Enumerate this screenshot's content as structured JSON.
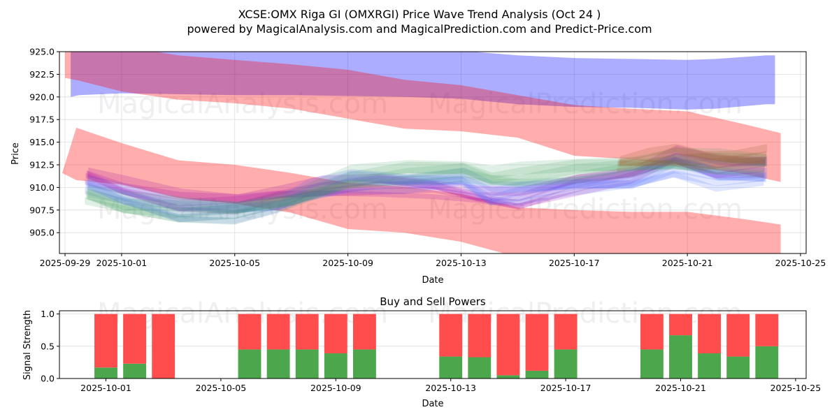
{
  "title_line1": "XCSE:OMX Riga GI (OMXRGI) Price Wave Trend Analysis (Oct 24 )",
  "title_line2": "powered by MagicalAnalysis.com and MagicalPrediction.com and Predict-Price.com",
  "watermarks": [
    "MagicalAnalysis.com",
    "MagicalPrediction.com"
  ],
  "chart_data": [
    {
      "type": "area",
      "title": "",
      "xlabel": "Date",
      "ylabel": "Price",
      "ylim": [
        902.7,
        925.0
      ],
      "xlim": [
        "2025-09-28.8",
        "2025-10-25.4"
      ],
      "grid": true,
      "x_ticks": [
        "2025-09-29",
        "2025-10-01",
        "2025-10-05",
        "2025-10-09",
        "2025-10-13",
        "2025-10-17",
        "2025-10-21",
        "2025-10-25"
      ],
      "y_ticks": [
        "905.0",
        "907.5",
        "910.0",
        "912.5",
        "915.0",
        "917.5",
        "920.0",
        "922.5",
        "925.0"
      ],
      "bands": [
        {
          "name": "Upper blue wave band",
          "color": "#0000ff",
          "opacity": 0.32,
          "x": [
            0.2,
            0.5,
            2,
            4,
            6,
            8,
            10,
            12,
            14,
            16,
            18,
            20,
            22,
            23,
            24.8,
            25.1
          ],
          "upper": [
            926.8,
            926.5,
            926.2,
            925.8,
            925.6,
            925.4,
            925.3,
            925.3,
            925.1,
            924.6,
            924.3,
            924.2,
            924.1,
            924.2,
            924.6,
            924.6
          ],
          "lower": [
            920.0,
            920.2,
            920.4,
            920.3,
            920.2,
            920.2,
            920.1,
            920.0,
            919.8,
            919.2,
            918.9,
            918.8,
            918.6,
            918.7,
            919.2,
            919.2
          ]
        },
        {
          "name": "Upper red wave band",
          "color": "#ff0000",
          "opacity": 0.32,
          "x": [
            0,
            0.5,
            2,
            4,
            6,
            8,
            10,
            12,
            14,
            16,
            18,
            20,
            22,
            24,
            25.3
          ],
          "upper": [
            925.5,
            926.5,
            925.6,
            924.6,
            924.1,
            923.6,
            923.0,
            921.9,
            921.3,
            920.2,
            919.1,
            918.7,
            918.4,
            917.0,
            916.0
          ],
          "lower": [
            922.1,
            921.8,
            920.6,
            919.7,
            919.3,
            918.7,
            917.6,
            916.5,
            916.2,
            915.5,
            913.5,
            913.1,
            912.4,
            911.5,
            910.6
          ]
        },
        {
          "name": "Lower red wave band",
          "color": "#ff0000",
          "opacity": 0.32,
          "x": [
            -0.1,
            0.4,
            2,
            4,
            6,
            8,
            10,
            12,
            14,
            16,
            18,
            20,
            22,
            24,
            25.3
          ],
          "upper": [
            911.6,
            916.6,
            914.9,
            913.0,
            912.5,
            911.6,
            910.5,
            910.1,
            909.3,
            907.8,
            907.5,
            907.3,
            907.3,
            906.5,
            905.9
          ],
          "lower": [
            911.6,
            910.8,
            910.3,
            908.8,
            908.2,
            907.2,
            905.4,
            905.0,
            904.0,
            902.3,
            901.5,
            901.3,
            901.3,
            901.3,
            901.2
          ]
        }
      ],
      "wave_bundles": [
        {
          "name": "Purple short-term waves",
          "color": "#9900aa",
          "opacity": 0.18,
          "x": [
            0.7,
            2,
            4,
            6,
            7.5,
            9,
            11,
            13,
            14.5,
            16,
            18,
            20,
            21.5,
            23,
            24.7
          ],
          "center": [
            911.3,
            909.9,
            908.4,
            908.3,
            909.2,
            909.8,
            910.2,
            909.9,
            909.0,
            908.5,
            910.3,
            911.4,
            913.3,
            912.0,
            912.4
          ],
          "spread": 1.0
        },
        {
          "name": "Blue short-term waves",
          "color": "#4466ff",
          "opacity": 0.16,
          "x": [
            0.7,
            2,
            4,
            6,
            7.5,
            8.5,
            10,
            12,
            14,
            15,
            16,
            18,
            20,
            21.5,
            23,
            24.7
          ],
          "center": [
            910.3,
            908.9,
            907.3,
            907.3,
            908.0,
            909.3,
            910.6,
            910.5,
            910.9,
            909.0,
            909.4,
            910.2,
            910.6,
            912.2,
            910.9,
            911.1
          ],
          "spread": 1.2
        },
        {
          "name": "Green short-term waves",
          "color": "#339955",
          "opacity": 0.15,
          "x": [
            0.7,
            2,
            4,
            6,
            8,
            10,
            12,
            14,
            15,
            16,
            18,
            20,
            21.5,
            23,
            24.7
          ],
          "center": [
            909.2,
            908.0,
            907.3,
            907.3,
            908.6,
            910.8,
            911.5,
            911.8,
            911.0,
            911.1,
            911.8,
            912.3,
            912.8,
            912.6,
            912.5
          ],
          "spread": 1.4
        },
        {
          "name": "Brown short-term waves",
          "color": "#996633",
          "opacity": 0.2,
          "x": [
            19.5,
            20.5,
            21.5,
            22.5,
            23.5,
            24.7
          ],
          "center": [
            912.6,
            913.0,
            913.4,
            913.1,
            913.1,
            913.3
          ],
          "spread": 0.9
        }
      ]
    },
    {
      "type": "bar",
      "title": "Buy and Sell Powers",
      "xlabel": "Date",
      "ylabel": "Signal Strength",
      "ylim": [
        0.0,
        1.05
      ],
      "grid": true,
      "x_ticks": [
        "2025-10-01",
        "2025-10-05",
        "2025-10-09",
        "2025-10-13",
        "2025-10-17",
        "2025-10-21",
        "2025-10-25"
      ],
      "y_ticks": [
        "0.0",
        "0.5",
        "1.0"
      ],
      "categories": [
        "2025-10-01",
        "2025-10-02",
        "2025-10-03",
        "2025-10-06",
        "2025-10-07",
        "2025-10-08",
        "2025-10-09",
        "2025-10-10",
        "2025-10-13",
        "2025-10-14",
        "2025-10-15",
        "2025-10-16",
        "2025-10-17",
        "2025-10-20",
        "2025-10-21",
        "2025-10-22",
        "2025-10-23",
        "2025-10-24"
      ],
      "series": [
        {
          "name": "Buy Power",
          "color": "#4ca64c",
          "values": [
            0.17,
            0.23,
            0.0,
            0.45,
            0.45,
            0.45,
            0.39,
            0.45,
            0.34,
            0.33,
            0.05,
            0.12,
            0.45,
            0.45,
            0.67,
            0.39,
            0.34,
            0.5
          ]
        },
        {
          "name": "Sell Power",
          "color": "#ff4c4c",
          "values": [
            0.83,
            0.77,
            1.0,
            0.55,
            0.55,
            0.55,
            0.61,
            0.55,
            0.66,
            0.67,
            0.95,
            0.88,
            0.55,
            0.55,
            0.33,
            0.61,
            0.66,
            0.5
          ]
        }
      ]
    }
  ]
}
